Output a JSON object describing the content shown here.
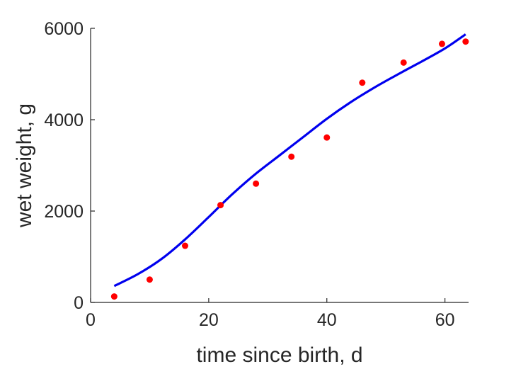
{
  "chart_data": {
    "type": "scatter",
    "title": "",
    "xlabel": "time since birth, d",
    "ylabel": "wet weight, g",
    "xlim": [
      0,
      64
    ],
    "ylim": [
      0,
      6000
    ],
    "xticks": [
      0,
      20,
      40,
      60
    ],
    "yticks": [
      0,
      2000,
      4000,
      6000
    ],
    "xtick_labels": [
      "0",
      "20",
      "40",
      "60"
    ],
    "ytick_labels": [
      "0",
      "2000",
      "4000",
      "6000"
    ],
    "grid": false,
    "legend": "none",
    "series": [
      {
        "kind": "points",
        "color": "#ff0000",
        "x": [
          4,
          10,
          16,
          22,
          28,
          34,
          40,
          46,
          53,
          59.5,
          63.5
        ],
        "y": [
          130,
          500,
          1240,
          2130,
          2600,
          3190,
          3610,
          4810,
          5250,
          5660,
          5710
        ]
      },
      {
        "kind": "line",
        "color": "#0000ee",
        "x": [
          4,
          8,
          12,
          16,
          20,
          24,
          28,
          32,
          36,
          40,
          44,
          48,
          52,
          56,
          60,
          63.5
        ],
        "y": [
          360,
          620,
          950,
          1380,
          1870,
          2370,
          2820,
          3220,
          3620,
          4020,
          4380,
          4700,
          4990,
          5270,
          5560,
          5870
        ]
      }
    ]
  }
}
